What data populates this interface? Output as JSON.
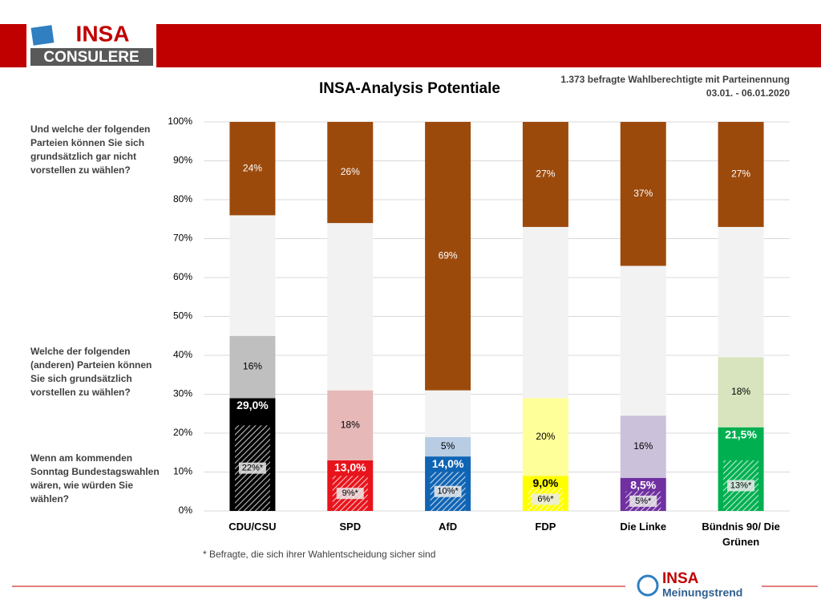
{
  "chart_data": {
    "type": "stacked_bar",
    "title": "INSA-Analysis Potentiale",
    "subtitle": [
      "1.373 befragte Wahlberechtigte mit Parteinennung",
      "03.01. - 06.01.2020"
    ],
    "brand": {
      "top": [
        "INSA",
        "CONSULERE"
      ],
      "bottom": [
        "INSA",
        "Meinungstrend"
      ]
    },
    "footnote": "* Befragte, die sich ihrer Wahlentscheidung sicher sind",
    "categories": [
      "CDU/CSU",
      "SPD",
      "AfD",
      "FDP",
      "Die Linke",
      "Bündnis 90/ Die Grünen"
    ],
    "series": [
      {
        "name": "Wenn am kommenden Sonntag Bundestagswahlen wären, wie würden Sie wählen?",
        "colors": [
          "#000000",
          "#e8141c",
          "#1064b4",
          "#ffff00",
          "#7030a0",
          "#00b050"
        ],
        "values": [
          29.0,
          13.0,
          14.0,
          9.0,
          8.5,
          21.5
        ],
        "value_labels": [
          "29,0%",
          "13,0%",
          "14,0%",
          "9,0%",
          "8,5%",
          "21,5%"
        ]
      },
      {
        "name": "Welche der folgenden (anderen) Parteien können Sie sich grundsätzlich vorstellen zu wählen?",
        "colors": [
          "#bfbfbf",
          "#e6b9b8",
          "#b8cce4",
          "#ffff99",
          "#ccc1da",
          "#d7e4bd"
        ],
        "values": [
          16,
          18,
          5,
          20,
          16,
          18
        ],
        "value_labels": [
          "16%",
          "18%",
          "5%",
          "20%",
          "16%",
          "18%"
        ]
      },
      {
        "colors": [
          "#f2f2f2",
          "#f2f2f2",
          "#f2f2f2",
          "#f2f2f2",
          "#f2f2f2",
          "#f2f2f2"
        ],
        "values": [
          31,
          43,
          12,
          44,
          38.5,
          33.5
        ]
      },
      {
        "name": "Und welche der folgenden Parteien können Sie sich grundsätzlich gar nicht vorstellen zu wählen?",
        "colors": [
          "#9c4a0c",
          "#9c4a0c",
          "#9c4a0c",
          "#9c4a0c",
          "#9c4a0c",
          "#9c4a0c"
        ],
        "values": [
          24,
          26,
          69,
          27,
          37,
          27
        ],
        "value_labels": [
          "24%",
          "26%",
          "69%",
          "27%",
          "37%",
          "27%"
        ]
      }
    ],
    "sure_voters": {
      "values": [
        22,
        9,
        10,
        6,
        5,
        13
      ],
      "value_labels": [
        "22%*",
        "9%*",
        "10%*",
        "6%*",
        "5%*",
        "13%*"
      ]
    },
    "ylim": [
      0,
      100
    ],
    "yticks": [
      {
        "value": 0,
        "label": "0%"
      },
      {
        "value": 10,
        "label": "10%"
      },
      {
        "value": 20,
        "label": "20%"
      },
      {
        "value": 30,
        "label": "30%"
      },
      {
        "value": 40,
        "label": "40%"
      },
      {
        "value": 50,
        "label": "50%"
      },
      {
        "value": 60,
        "label": "60%"
      },
      {
        "value": 70,
        "label": "70%"
      },
      {
        "value": 80,
        "label": "80%"
      },
      {
        "value": 90,
        "label": "90%"
      },
      {
        "value": 100,
        "label": "100%"
      }
    ],
    "grid": true
  }
}
